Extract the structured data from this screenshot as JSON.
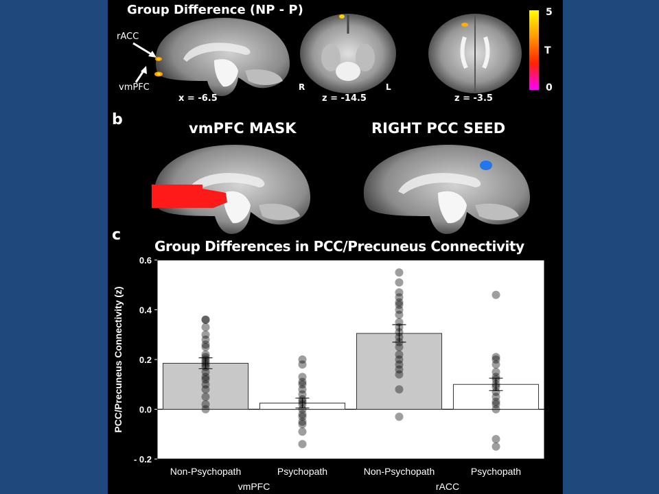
{
  "panel_a": {
    "title": "Group Difference (NP - P)",
    "label_racc": "rACC",
    "label_vmpfc": "vmPFC",
    "coord_1": "x = -6.5",
    "coord_2": "z = -14.5",
    "coord_3": "z = -3.5",
    "orient_r": "R",
    "orient_l": "L",
    "colorbar": {
      "max": "5",
      "mid": "T",
      "min": "0",
      "colors": [
        "#ffff00",
        "#ff9900",
        "#ff2200",
        "#ff00ff"
      ]
    }
  },
  "panel_b": {
    "letter": "b",
    "mask_title": "vmPFC MASK",
    "seed_title": "RIGHT PCC SEED",
    "mask_color": "#ff1a1a",
    "seed_color": "#2277ee"
  },
  "chart_data": {
    "letter": "c",
    "type": "bar",
    "title": "Group Differences in PCC/Precuneus Connectivity",
    "ylabel": "PCC/Precuneus Connectivity (z)",
    "ylim": [
      -0.2,
      0.6
    ],
    "yticks": [
      "0.6",
      "0.4",
      "0.2",
      "0.0",
      "- 0.2"
    ],
    "ytick_values": [
      0.6,
      0.4,
      0.2,
      0.0,
      -0.2
    ],
    "categories": [
      "Non-Psychopath",
      "Psychopath",
      "Non-Psychopath",
      "Psychopath"
    ],
    "groups": [
      "vmPFC",
      "rACC"
    ],
    "values": [
      0.185,
      0.025,
      0.305,
      0.1
    ],
    "errors": [
      0.022,
      0.02,
      0.035,
      0.025
    ],
    "bar_colors": [
      "#c8c8c8",
      "#ffffff",
      "#c8c8c8",
      "#ffffff"
    ],
    "points": [
      [
        0.36,
        0.36,
        0.33,
        0.3,
        0.28,
        0.26,
        0.25,
        0.22,
        0.21,
        0.2,
        0.19,
        0.18,
        0.17,
        0.15,
        0.13,
        0.12,
        0.1,
        0.08,
        0.05,
        0.02,
        0.0
      ],
      [
        0.2,
        0.18,
        0.13,
        0.11,
        0.1,
        0.08,
        0.06,
        0.04,
        0.03,
        0.02,
        0.0,
        -0.02,
        -0.03,
        -0.05,
        -0.06,
        -0.09,
        -0.14
      ],
      [
        0.55,
        0.51,
        0.47,
        0.45,
        0.43,
        0.42,
        0.4,
        0.38,
        0.35,
        0.33,
        0.31,
        0.29,
        0.27,
        0.25,
        0.22,
        0.2,
        0.18,
        0.16,
        0.14,
        0.08,
        -0.03
      ],
      [
        0.46,
        0.21,
        0.2,
        0.18,
        0.15,
        0.13,
        0.12,
        0.1,
        0.09,
        0.07,
        0.05,
        0.03,
        0.02,
        0.0,
        -0.12,
        -0.15
      ]
    ]
  }
}
